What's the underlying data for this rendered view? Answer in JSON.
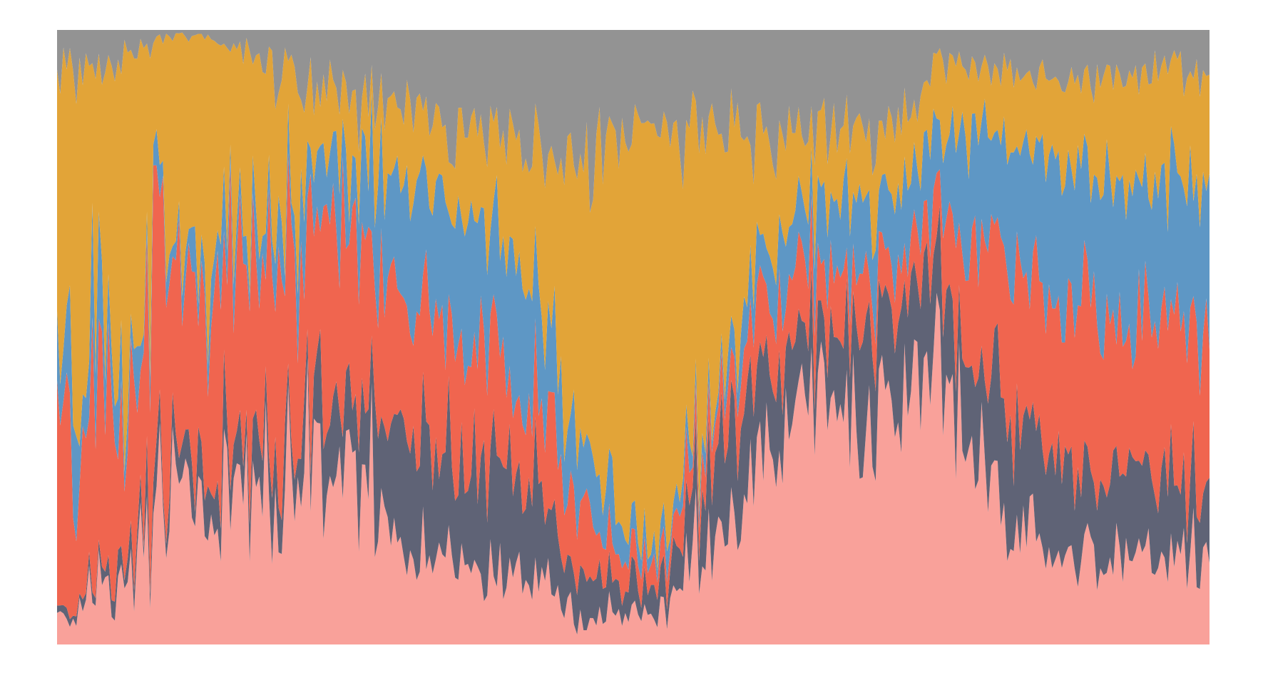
{
  "chart_data": {
    "type": "area",
    "stacked": true,
    "normalized": true,
    "axes_visible": false,
    "grid": false,
    "legend": "none",
    "ylim": [
      0,
      1
    ],
    "n_points": 360,
    "series": [
      {
        "color": "#f9a19a",
        "anchors": [
          [
            0,
            0.03
          ],
          [
            10,
            0.08
          ],
          [
            20,
            0.09
          ],
          [
            25,
            0.1
          ],
          [
            28,
            0.2
          ],
          [
            35,
            0.23
          ],
          [
            45,
            0.3
          ],
          [
            55,
            0.25
          ],
          [
            65,
            0.32
          ],
          [
            72,
            0.35
          ],
          [
            78,
            0.4
          ],
          [
            85,
            0.3
          ],
          [
            95,
            0.25
          ],
          [
            110,
            0.15
          ],
          [
            125,
            0.12
          ],
          [
            140,
            0.1
          ],
          [
            155,
            0.1
          ],
          [
            162,
            0.03
          ],
          [
            172,
            0.05
          ],
          [
            180,
            0.05
          ],
          [
            190,
            0.05
          ],
          [
            200,
            0.15
          ],
          [
            215,
            0.25
          ],
          [
            230,
            0.35
          ],
          [
            245,
            0.4
          ],
          [
            255,
            0.4
          ],
          [
            268,
            0.4
          ],
          [
            275,
            0.4
          ],
          [
            285,
            0.35
          ],
          [
            295,
            0.2
          ],
          [
            310,
            0.15
          ],
          [
            325,
            0.12
          ],
          [
            340,
            0.12
          ],
          [
            359,
            0.12
          ]
        ]
      },
      {
        "color": "#5f6376",
        "anchors": [
          [
            0,
            0.01
          ],
          [
            20,
            0.02
          ],
          [
            35,
            0.05
          ],
          [
            55,
            0.07
          ],
          [
            75,
            0.08
          ],
          [
            85,
            0.12
          ],
          [
            100,
            0.15
          ],
          [
            115,
            0.16
          ],
          [
            130,
            0.16
          ],
          [
            145,
            0.14
          ],
          [
            155,
            0.1
          ],
          [
            165,
            0.06
          ],
          [
            175,
            0.05
          ],
          [
            185,
            0.04
          ],
          [
            195,
            0.06
          ],
          [
            205,
            0.14
          ],
          [
            215,
            0.18
          ],
          [
            225,
            0.12
          ],
          [
            235,
            0.1
          ],
          [
            245,
            0.14
          ],
          [
            255,
            0.16
          ],
          [
            268,
            0.14
          ],
          [
            275,
            0.12
          ],
          [
            285,
            0.12
          ],
          [
            295,
            0.17
          ],
          [
            310,
            0.15
          ],
          [
            325,
            0.13
          ],
          [
            340,
            0.12
          ],
          [
            359,
            0.11
          ]
        ]
      },
      {
        "color": "#f0654f",
        "anchors": [
          [
            0,
            0.3
          ],
          [
            10,
            0.25
          ],
          [
            20,
            0.2
          ],
          [
            30,
            0.35
          ],
          [
            45,
            0.3
          ],
          [
            60,
            0.35
          ],
          [
            80,
            0.3
          ],
          [
            95,
            0.25
          ],
          [
            110,
            0.2
          ],
          [
            125,
            0.18
          ],
          [
            140,
            0.14
          ],
          [
            155,
            0.12
          ],
          [
            165,
            0.08
          ],
          [
            175,
            0.05
          ],
          [
            185,
            0.04
          ],
          [
            195,
            0.06
          ],
          [
            210,
            0.08
          ],
          [
            225,
            0.1
          ],
          [
            240,
            0.1
          ],
          [
            255,
            0.08
          ],
          [
            268,
            0.08
          ],
          [
            275,
            0.08
          ],
          [
            285,
            0.2
          ],
          [
            300,
            0.25
          ],
          [
            320,
            0.23
          ],
          [
            340,
            0.22
          ],
          [
            359,
            0.22
          ]
        ]
      },
      {
        "color": "#5e97c5",
        "anchors": [
          [
            0,
            0.15
          ],
          [
            15,
            0.08
          ],
          [
            25,
            0.05
          ],
          [
            40,
            0.05
          ],
          [
            55,
            0.08
          ],
          [
            70,
            0.07
          ],
          [
            85,
            0.1
          ],
          [
            100,
            0.15
          ],
          [
            115,
            0.17
          ],
          [
            130,
            0.17
          ],
          [
            145,
            0.17
          ],
          [
            155,
            0.15
          ],
          [
            165,
            0.1
          ],
          [
            175,
            0.06
          ],
          [
            185,
            0.03
          ],
          [
            195,
            0.03
          ],
          [
            205,
            0.03
          ],
          [
            215,
            0.06
          ],
          [
            230,
            0.1
          ],
          [
            245,
            0.12
          ],
          [
            255,
            0.12
          ],
          [
            268,
            0.12
          ],
          [
            275,
            0.12
          ],
          [
            285,
            0.15
          ],
          [
            300,
            0.22
          ],
          [
            320,
            0.2
          ],
          [
            340,
            0.2
          ],
          [
            359,
            0.2
          ]
        ]
      },
      {
        "color": "#e2a438",
        "anchors": [
          [
            0,
            0.42
          ],
          [
            10,
            0.48
          ],
          [
            20,
            0.5
          ],
          [
            30,
            0.4
          ],
          [
            45,
            0.35
          ],
          [
            60,
            0.28
          ],
          [
            75,
            0.2
          ],
          [
            90,
            0.14
          ],
          [
            100,
            0.1
          ],
          [
            115,
            0.1
          ],
          [
            130,
            0.12
          ],
          [
            145,
            0.15
          ],
          [
            155,
            0.25
          ],
          [
            165,
            0.45
          ],
          [
            175,
            0.68
          ],
          [
            185,
            0.7
          ],
          [
            195,
            0.68
          ],
          [
            205,
            0.5
          ],
          [
            215,
            0.25
          ],
          [
            230,
            0.12
          ],
          [
            245,
            0.1
          ],
          [
            255,
            0.1
          ],
          [
            268,
            0.1
          ],
          [
            275,
            0.1
          ],
          [
            285,
            0.1
          ],
          [
            300,
            0.1
          ],
          [
            320,
            0.14
          ],
          [
            340,
            0.16
          ],
          [
            359,
            0.16
          ]
        ]
      },
      {
        "color": "#939393",
        "anchors": [
          [
            0,
            0.08
          ],
          [
            15,
            0.05
          ],
          [
            30,
            0.02
          ],
          [
            45,
            0.01
          ],
          [
            60,
            0.05
          ],
          [
            75,
            0.07
          ],
          [
            90,
            0.1
          ],
          [
            105,
            0.12
          ],
          [
            120,
            0.14
          ],
          [
            135,
            0.14
          ],
          [
            150,
            0.17
          ],
          [
            160,
            0.2
          ],
          [
            170,
            0.2
          ],
          [
            180,
            0.18
          ],
          [
            190,
            0.17
          ],
          [
            200,
            0.17
          ],
          [
            210,
            0.17
          ],
          [
            225,
            0.17
          ],
          [
            240,
            0.16
          ],
          [
            255,
            0.15
          ],
          [
            268,
            0.13
          ],
          [
            275,
            0.03
          ],
          [
            285,
            0.06
          ],
          [
            300,
            0.07
          ],
          [
            320,
            0.08
          ],
          [
            340,
            0.06
          ],
          [
            359,
            0.05
          ]
        ]
      }
    ]
  }
}
